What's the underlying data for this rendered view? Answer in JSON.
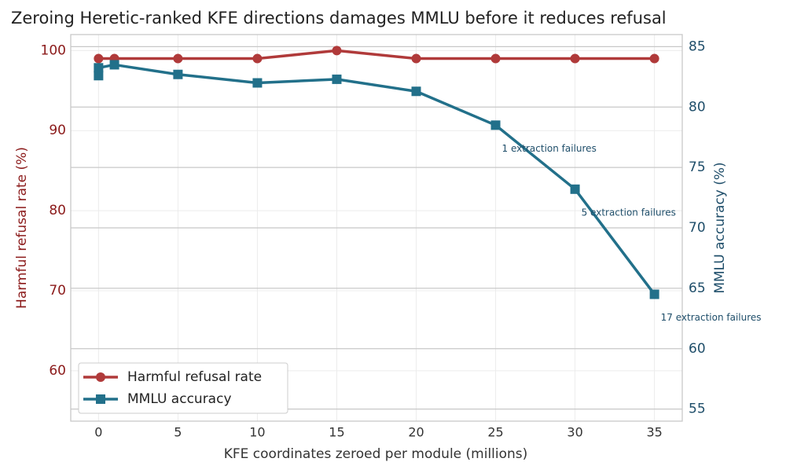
{
  "chart_data": {
    "type": "line",
    "title": "Zeroing Heretic-ranked KFE directions damages MMLU before it reduces refusal",
    "x_label": "KFE coordinates zeroed per module (millions)",
    "y_label": "Harmful refusal rate (%)",
    "y2_label": "MMLU accuracy (%)",
    "xlim": [
      -1.75,
      36.75
    ],
    "xticks": [
      0,
      5,
      10,
      15,
      20,
      25,
      30,
      35
    ],
    "ylim": [
      53.7,
      102
    ],
    "yticks": [
      60,
      70,
      80,
      90,
      100
    ],
    "y2lim": [
      54,
      86
    ],
    "y2ticks": [
      55,
      60,
      65,
      70,
      75,
      80,
      85
    ],
    "grid": true,
    "legend": "lower left",
    "series": [
      {
        "name": "Harmful refusal rate",
        "color": "#b03a3a",
        "marker": "circle",
        "x": [
          0,
          1,
          5,
          10,
          15,
          20,
          25,
          30,
          35
        ],
        "values": [
          99,
          99,
          99,
          99,
          100,
          99,
          99,
          99,
          99
        ]
      },
      {
        "name": "MMLU accuracy",
        "color": "#22708a",
        "marker": "square",
        "axis": "y2",
        "x": [
          0,
          0,
          1,
          5,
          10,
          15,
          20,
          25,
          30,
          35
        ],
        "values": [
          82.6,
          83.25,
          83.5,
          82.7,
          82.0,
          82.3,
          81.3,
          78.5,
          73.2,
          64.5
        ]
      }
    ],
    "annotations": [
      {
        "text": "1 extraction failures",
        "x": 25
      },
      {
        "text": "5 extraction failures",
        "x": 30
      },
      {
        "text": "17 extraction failures",
        "x": 35
      }
    ]
  }
}
